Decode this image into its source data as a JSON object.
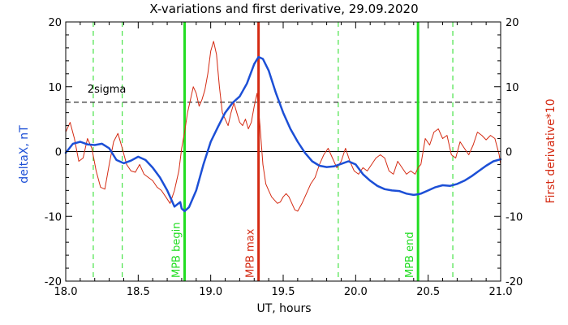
{
  "chart_data": {
    "type": "line",
    "title": "X-variations and first derivative, 29.09.2020",
    "xlabel": "UT, hours",
    "ylabel_left": "deltaX, nT",
    "ylabel_right": "First derivative*10",
    "xlim": [
      18.0,
      21.0
    ],
    "ylim_left": [
      -20,
      20
    ],
    "ylim_right": [
      -20,
      20
    ],
    "x_ticks": [
      "18.0",
      "18.5",
      "19.0",
      "19.5",
      "20.0",
      "20.5",
      "21.0"
    ],
    "y_ticks_left": [
      "-20",
      "-10",
      "0",
      "10",
      "20"
    ],
    "y_ticks_right": [
      "-20",
      "-10",
      "0",
      "10",
      "20"
    ],
    "grid": false,
    "colors": {
      "deltaX": "#1c4fd6",
      "derivative": "#d42a12",
      "mpb_lines": "#22dd22",
      "mpb_max": "#d42a12",
      "reference": "#000000"
    },
    "reference_lines": [
      {
        "y": 0,
        "style": "solid"
      },
      {
        "y": 7.6,
        "style": "dashed",
        "label": "2sigma"
      }
    ],
    "vertical_markers": [
      {
        "x": 18.82,
        "label": "MPB begin",
        "color": "#22dd22",
        "style": "solid"
      },
      {
        "x": 19.33,
        "label": "MPB max",
        "color": "#d42a12",
        "style": "solid"
      },
      {
        "x": 20.43,
        "label": "MPB end",
        "color": "#22dd22",
        "style": "solid"
      }
    ],
    "dashed_verticals": [
      18.19,
      18.39,
      19.88,
      20.67
    ],
    "series": [
      {
        "name": "deltaX, nT",
        "axis": "left",
        "x": [
          18.0,
          18.05,
          18.1,
          18.15,
          18.2,
          18.25,
          18.3,
          18.35,
          18.4,
          18.45,
          18.5,
          18.55,
          18.6,
          18.65,
          18.7,
          18.75,
          18.79,
          18.8,
          18.82,
          18.85,
          18.9,
          18.95,
          19.0,
          19.05,
          19.1,
          19.15,
          19.2,
          19.25,
          19.3,
          19.33,
          19.36,
          19.4,
          19.45,
          19.5,
          19.55,
          19.6,
          19.65,
          19.7,
          19.75,
          19.8,
          19.85,
          19.9,
          19.95,
          20.0,
          20.05,
          20.1,
          20.15,
          20.2,
          20.25,
          20.3,
          20.35,
          20.4,
          20.43,
          20.45,
          20.5,
          20.55,
          20.6,
          20.65,
          20.7,
          20.75,
          20.8,
          20.85,
          20.9,
          20.95,
          21.0
        ],
        "y": [
          -0.2,
          1.2,
          1.5,
          1.1,
          1.0,
          1.2,
          0.5,
          -1.3,
          -1.8,
          -1.4,
          -0.8,
          -1.3,
          -2.5,
          -4.0,
          -6.0,
          -8.5,
          -7.8,
          -8.8,
          -9.2,
          -8.6,
          -6.0,
          -2.0,
          1.5,
          3.8,
          6.0,
          7.5,
          8.5,
          10.5,
          13.5,
          14.6,
          14.3,
          12.5,
          9.0,
          6.0,
          3.5,
          1.5,
          -0.2,
          -1.5,
          -2.2,
          -2.4,
          -2.3,
          -1.9,
          -1.5,
          -2.0,
          -3.5,
          -4.5,
          -5.3,
          -5.8,
          -6.0,
          -6.1,
          -6.5,
          -6.7,
          -6.6,
          -6.5,
          -6.0,
          -5.5,
          -5.2,
          -5.3,
          -5.0,
          -4.5,
          -3.8,
          -3.0,
          -2.2,
          -1.5,
          -1.2
        ]
      },
      {
        "name": "First derivative*10",
        "axis": "right",
        "x": [
          18.0,
          18.03,
          18.06,
          18.09,
          18.12,
          18.15,
          18.18,
          18.21,
          18.24,
          18.27,
          18.3,
          18.33,
          18.36,
          18.39,
          18.42,
          18.45,
          18.48,
          18.51,
          18.54,
          18.57,
          18.6,
          18.63,
          18.66,
          18.69,
          18.72,
          18.75,
          18.78,
          18.8,
          18.82,
          18.84,
          18.86,
          18.88,
          18.9,
          18.92,
          18.94,
          18.96,
          18.98,
          19.0,
          19.02,
          19.04,
          19.06,
          19.08,
          19.1,
          19.12,
          19.14,
          19.16,
          19.18,
          19.2,
          19.22,
          19.24,
          19.26,
          19.28,
          19.3,
          19.32,
          19.34,
          19.36,
          19.38,
          19.4,
          19.42,
          19.44,
          19.46,
          19.48,
          19.5,
          19.52,
          19.54,
          19.56,
          19.58,
          19.6,
          19.63,
          19.66,
          19.69,
          19.72,
          19.75,
          19.78,
          19.81,
          19.84,
          19.87,
          19.9,
          19.93,
          19.96,
          19.99,
          20.02,
          20.05,
          20.08,
          20.11,
          20.14,
          20.17,
          20.2,
          20.23,
          20.26,
          20.29,
          20.32,
          20.35,
          20.38,
          20.41,
          20.43,
          20.45,
          20.48,
          20.51,
          20.54,
          20.57,
          20.6,
          20.63,
          20.66,
          20.69,
          20.72,
          20.75,
          20.78,
          20.81,
          20.84,
          20.87,
          20.9,
          20.93,
          20.96,
          20.99,
          21.0
        ],
        "y": [
          3.0,
          4.5,
          2.0,
          -1.5,
          -1.0,
          2.0,
          0.5,
          -3.0,
          -5.5,
          -5.8,
          -2.0,
          1.5,
          2.8,
          0.5,
          -2.0,
          -3.0,
          -3.2,
          -2.0,
          -3.5,
          -4.0,
          -4.5,
          -5.5,
          -6.0,
          -7.0,
          -8.0,
          -6.0,
          -3.0,
          0.5,
          3.0,
          6.0,
          8.0,
          10.0,
          9.0,
          7.0,
          8.0,
          9.5,
          12.0,
          15.5,
          17.0,
          15.0,
          10.0,
          6.0,
          5.0,
          4.0,
          6.0,
          7.5,
          6.0,
          4.5,
          4.0,
          5.0,
          3.5,
          4.5,
          7.0,
          9.0,
          4.0,
          -2.0,
          -5.0,
          -6.0,
          -7.0,
          -7.5,
          -8.0,
          -7.8,
          -7.0,
          -6.5,
          -7.0,
          -8.0,
          -9.0,
          -9.2,
          -8.0,
          -6.5,
          -5.0,
          -4.0,
          -2.0,
          -0.5,
          0.5,
          -1.0,
          -2.5,
          -1.5,
          0.5,
          -1.5,
          -3.0,
          -3.5,
          -2.5,
          -3.0,
          -2.0,
          -1.0,
          -0.5,
          -1.0,
          -3.0,
          -3.5,
          -1.5,
          -2.5,
          -3.5,
          -3.0,
          -3.5,
          -2.5,
          -2.0,
          2.0,
          1.0,
          3.0,
          3.5,
          2.0,
          2.5,
          -0.5,
          -1.0,
          1.5,
          0.5,
          -0.5,
          1.0,
          3.0,
          2.5,
          1.8,
          2.5,
          2.0,
          -0.5,
          -2.0
        ]
      }
    ]
  }
}
